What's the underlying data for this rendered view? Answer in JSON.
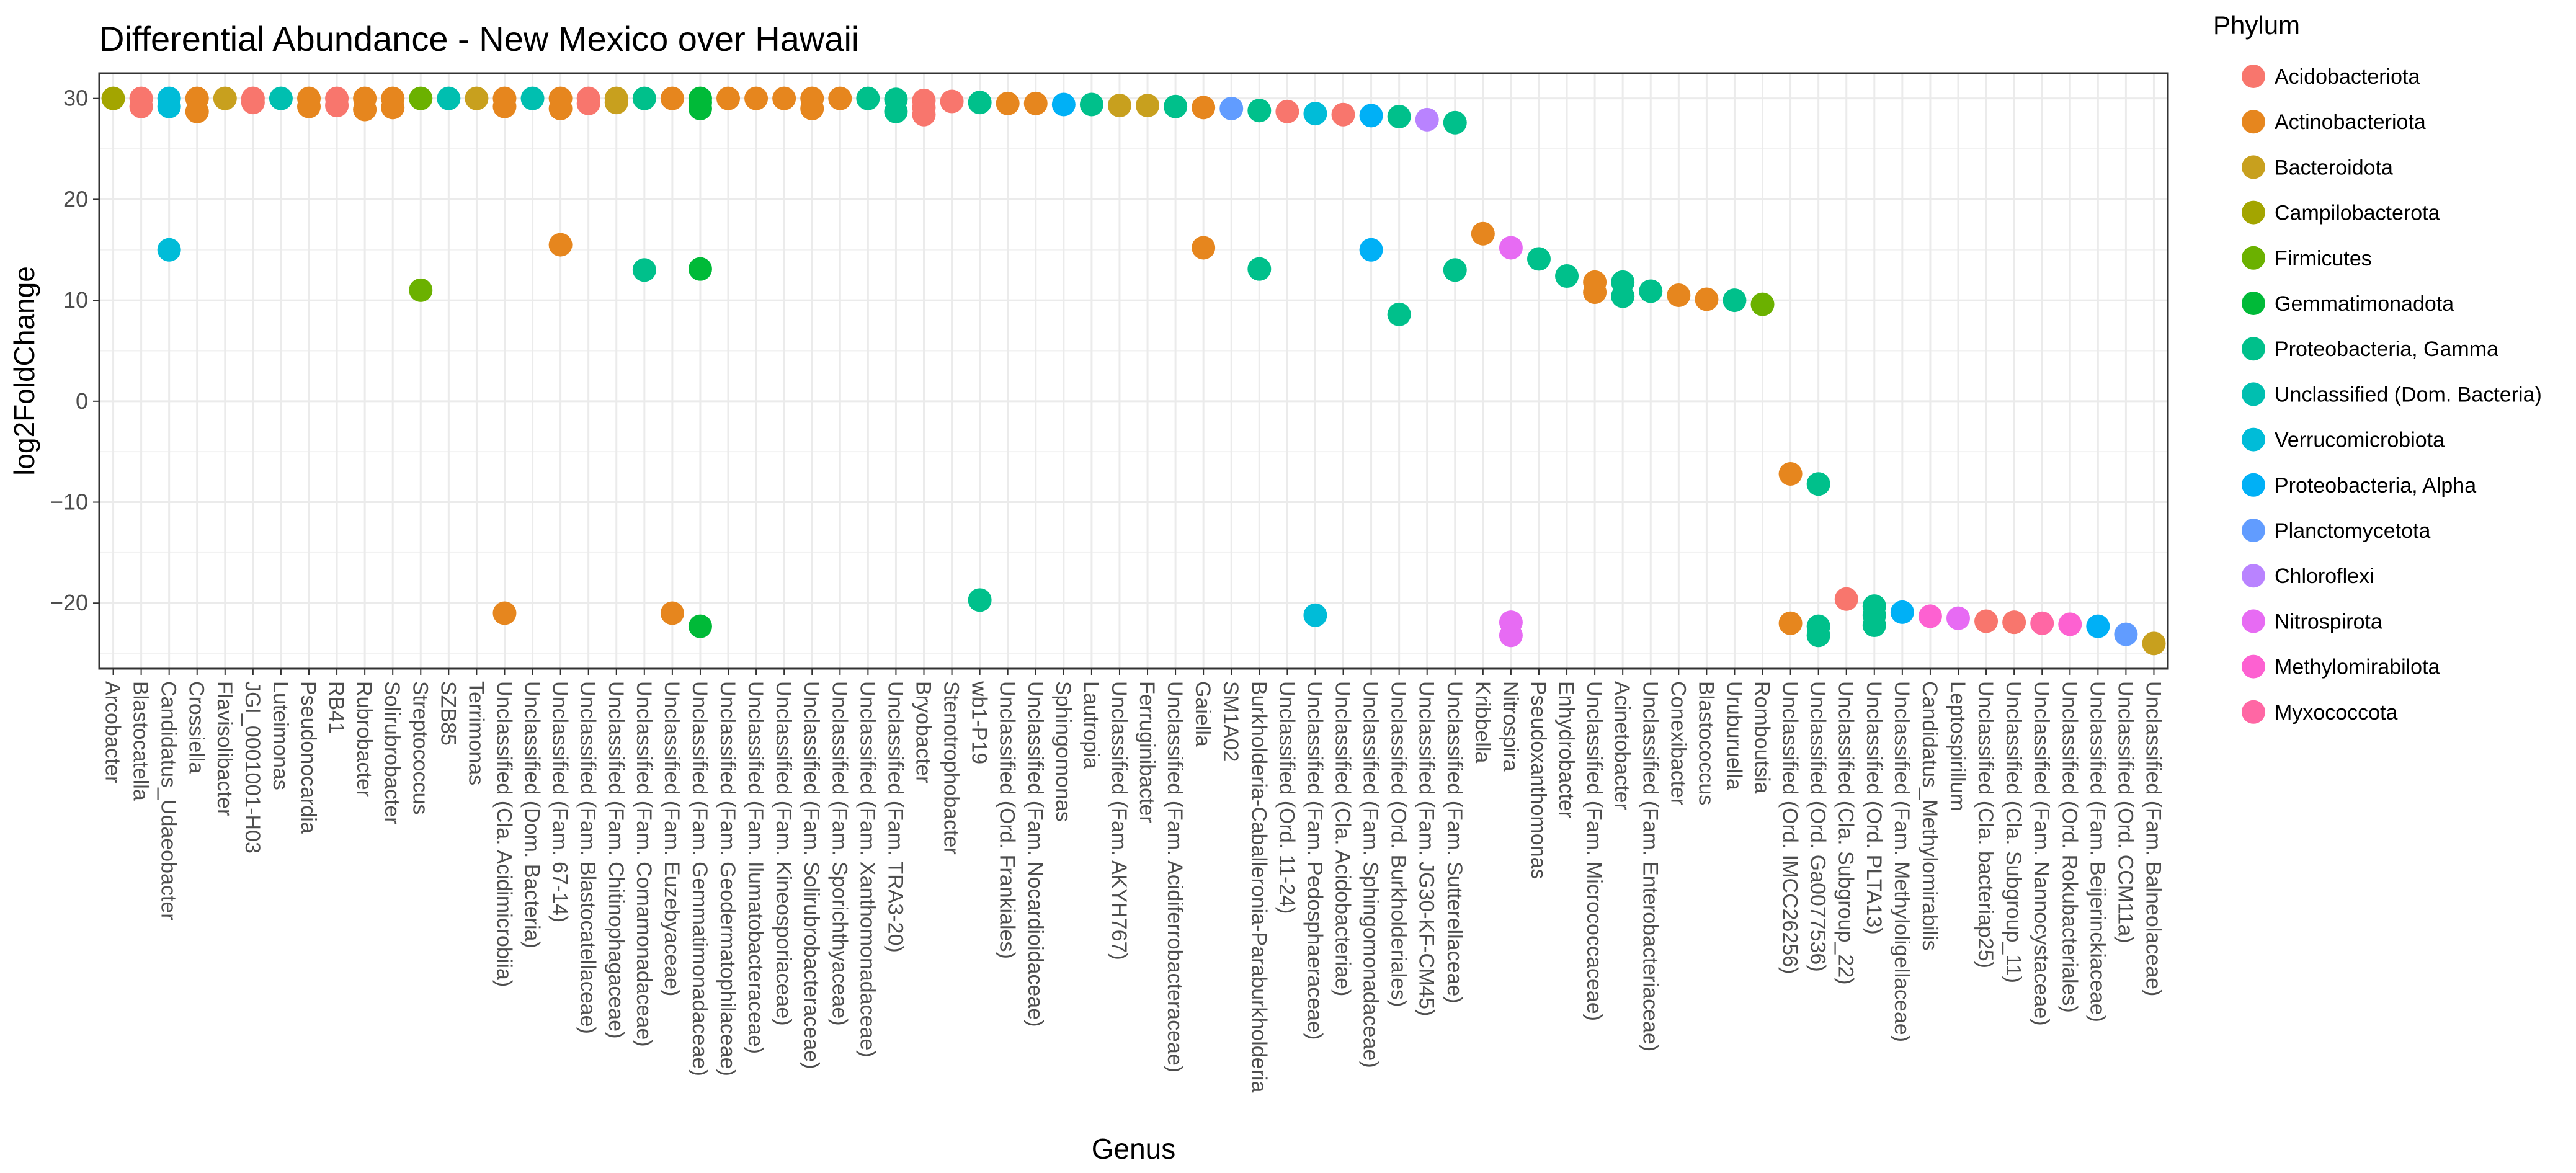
{
  "chart_data": {
    "type": "scatter",
    "title": "Differential Abundance - New Mexico over Hawaii",
    "xlabel": "Genus",
    "ylabel": "log2FoldChange",
    "ylim": [
      -26.5,
      32.5
    ],
    "yticks": [
      30,
      20,
      10,
      0,
      -10,
      -20
    ],
    "grid": true,
    "legend": {
      "title": "Phylum",
      "placement": "right",
      "entries": [
        {
          "name": "Acidobacteriota",
          "color": "#F8766D"
        },
        {
          "name": "Actinobacteriota",
          "color": "#E6861E"
        },
        {
          "name": "Bacteroidota",
          "color": "#C8A01E"
        },
        {
          "name": "Campilobacterota",
          "color": "#A3A500"
        },
        {
          "name": "Firmicutes",
          "color": "#6BB100"
        },
        {
          "name": "Gemmatimonadota",
          "color": "#00BA38"
        },
        {
          "name": "Proteobacteria, Gamma",
          "color": "#00C08B"
        },
        {
          "name": "Unclassified (Dom. Bacteria)",
          "color": "#00BFB0"
        },
        {
          "name": "Verrucomicrobiota",
          "color": "#00BCD8"
        },
        {
          "name": "Proteobacteria, Alpha",
          "color": "#00B0F6"
        },
        {
          "name": "Planctomycetota",
          "color": "#619CFF"
        },
        {
          "name": "Chloroflexi",
          "color": "#B983FF"
        },
        {
          "name": "Nitrospirota",
          "color": "#E76BF3"
        },
        {
          "name": "Methylomirabilota",
          "color": "#FD61D1"
        },
        {
          "name": "Myxococcota",
          "color": "#FF67A4"
        }
      ]
    },
    "categories": [
      "Arcobacter",
      "Blastocatella",
      "Candidatus_Udaeobacter",
      "Crossiella",
      "Flavisolibacter",
      "JGI_0001001-H03",
      "Luteimonas",
      "Pseudonocardia",
      "RB41",
      "Rubrobacter",
      "Solirubrobacter",
      "Streptococcus",
      "SZB85",
      "Terrimonas",
      "Unclassified (Cla. Acidimicrobiia)",
      "Unclassified (Dom. Bacteria)",
      "Unclassified (Fam. 67-14)",
      "Unclassified (Fam. Blastocatellaceae)",
      "Unclassified (Fam. Chitinophagaceae)",
      "Unclassified (Fam. Comamonadaceae)",
      "Unclassified (Fam. Euzebyaceae)",
      "Unclassified (Fam. Gemmatimonadaceae)",
      "Unclassified (Fam. Geodermatophilaceae)",
      "Unclassified (Fam. Ilumatobacteraceae)",
      "Unclassified (Fam. Kineosporiaceae)",
      "Unclassified (Fam. Solirubrobacteraceae)",
      "Unclassified (Fam. Sporichthyaceae)",
      "Unclassified (Fam. Xanthomonadaceae)",
      "Unclassified (Fam. TRA3-20)",
      "Bryobacter",
      "Stenotrophobacter",
      "wb1-P19",
      "Unclassified (Ord. Frankiales)",
      "Unclassified (Fam. Nocardioidaceae)",
      "Sphingomonas",
      "Lautropia",
      "Unclassified (Fam. AKYH767)",
      "Ferruginibacter",
      "Unclassified (Fam. Acidiferrobacteraceae)",
      "Gaiella",
      "SM1A02",
      "Burkholderia-Caballeronia-Paraburkholderia",
      "Unclassified (Ord. 11-24)",
      "Unclassified (Fam. Pedosphaeraceae)",
      "Unclassified (Cla. Acidobacteriae)",
      "Unclassified (Fam. Sphingomonadaceae)",
      "Unclassified (Ord. Burkholderiales)",
      "Unclassified (Fam. JG30-KF-CM45)",
      "Unclassified (Fam. Sutterellaceae)",
      "Kribbella",
      "Nitrospira",
      "Pseudoxanthomonas",
      "Enhydrobacter",
      "Unclassified (Fam. Micrococcaceae)",
      "Acinetobacter",
      "Unclassified (Fam. Enterobacteriaceae)",
      "Conexibacter",
      "Blastococcus",
      "Uruburuella",
      "Romboutsia",
      "Unclassified (Ord. IMCC26256)",
      "Unclassified (Ord. Ga0077536)",
      "Unclassified (Cla. Subgroup_22)",
      "Unclassified (Ord. PLTA13)",
      "Unclassified (Fam. Methyloligellaceae)",
      "Candidatus_Methylomirabilis",
      "Leptospirillum",
      "Unclassified (Cla. bacteriap25)",
      "Unclassified (Cla. Subgroup_11)",
      "Unclassified (Fam. Nannocystaceae)",
      "Unclassified (Ord. Rokubacteriales)",
      "Unclassified (Fam. Beijerinckiaceae)",
      "Unclassified (Ord. CCM11a)",
      "Unclassified (Fam. Balneolaceae)"
    ],
    "points": [
      {
        "x": 0,
        "y": 30,
        "phylum": "Campilobacterota"
      },
      {
        "x": 1,
        "y": 30,
        "phylum": "Acidobacteriota"
      },
      {
        "x": 1,
        "y": 29.2,
        "phylum": "Acidobacteriota"
      },
      {
        "x": 2,
        "y": 30,
        "phylum": "Verrucomicrobiota"
      },
      {
        "x": 2,
        "y": 29.2,
        "phylum": "Verrucomicrobiota"
      },
      {
        "x": 2,
        "y": 15,
        "phylum": "Verrucomicrobiota"
      },
      {
        "x": 3,
        "y": 30,
        "phylum": "Actinobacteriota"
      },
      {
        "x": 3,
        "y": 28.7,
        "phylum": "Actinobacteriota"
      },
      {
        "x": 4,
        "y": 30,
        "phylum": "Bacteroidota"
      },
      {
        "x": 5,
        "y": 30,
        "phylum": "Acidobacteriota"
      },
      {
        "x": 5,
        "y": 29.6,
        "phylum": "Acidobacteriota"
      },
      {
        "x": 6,
        "y": 30,
        "phylum": "Unclassified (Dom. Bacteria)"
      },
      {
        "x": 7,
        "y": 30,
        "phylum": "Actinobacteriota"
      },
      {
        "x": 7,
        "y": 29.2,
        "phylum": "Actinobacteriota"
      },
      {
        "x": 8,
        "y": 30,
        "phylum": "Acidobacteriota"
      },
      {
        "x": 8,
        "y": 29.3,
        "phylum": "Acidobacteriota"
      },
      {
        "x": 9,
        "y": 30,
        "phylum": "Actinobacteriota"
      },
      {
        "x": 9,
        "y": 28.9,
        "phylum": "Actinobacteriota"
      },
      {
        "x": 10,
        "y": 30,
        "phylum": "Actinobacteriota"
      },
      {
        "x": 10,
        "y": 29.1,
        "phylum": "Actinobacteriota"
      },
      {
        "x": 11,
        "y": 30,
        "phylum": "Firmicutes"
      },
      {
        "x": 11,
        "y": 11,
        "phylum": "Firmicutes"
      },
      {
        "x": 12,
        "y": 30,
        "phylum": "Unclassified (Dom. Bacteria)"
      },
      {
        "x": 13,
        "y": 30,
        "phylum": "Bacteroidota"
      },
      {
        "x": 14,
        "y": 30,
        "phylum": "Actinobacteriota"
      },
      {
        "x": 14,
        "y": 29.2,
        "phylum": "Actinobacteriota"
      },
      {
        "x": 14,
        "y": -21,
        "phylum": "Actinobacteriota"
      },
      {
        "x": 15,
        "y": 30,
        "phylum": "Unclassified (Dom. Bacteria)"
      },
      {
        "x": 16,
        "y": 30,
        "phylum": "Actinobacteriota"
      },
      {
        "x": 16,
        "y": 29,
        "phylum": "Actinobacteriota"
      },
      {
        "x": 16,
        "y": 15.5,
        "phylum": "Actinobacteriota"
      },
      {
        "x": 17,
        "y": 30,
        "phylum": "Acidobacteriota"
      },
      {
        "x": 17,
        "y": 29.5,
        "phylum": "Acidobacteriota"
      },
      {
        "x": 18,
        "y": 30,
        "phylum": "Bacteroidota"
      },
      {
        "x": 18,
        "y": 29.6,
        "phylum": "Bacteroidota"
      },
      {
        "x": 19,
        "y": 30,
        "phylum": "Proteobacteria, Gamma"
      },
      {
        "x": 19,
        "y": 13,
        "phylum": "Proteobacteria, Gamma"
      },
      {
        "x": 20,
        "y": 30,
        "phylum": "Actinobacteriota"
      },
      {
        "x": 20,
        "y": -21,
        "phylum": "Actinobacteriota"
      },
      {
        "x": 21,
        "y": 30,
        "phylum": "Gemmatimonadota"
      },
      {
        "x": 21,
        "y": 29.6,
        "phylum": "Gemmatimonadota"
      },
      {
        "x": 21,
        "y": 29,
        "phylum": "Gemmatimonadota"
      },
      {
        "x": 21,
        "y": 13.1,
        "phylum": "Gemmatimonadota"
      },
      {
        "x": 21,
        "y": -22.3,
        "phylum": "Gemmatimonadota"
      },
      {
        "x": 22,
        "y": 30,
        "phylum": "Actinobacteriota"
      },
      {
        "x": 23,
        "y": 30,
        "phylum": "Actinobacteriota"
      },
      {
        "x": 24,
        "y": 30,
        "phylum": "Actinobacteriota"
      },
      {
        "x": 25,
        "y": 30,
        "phylum": "Actinobacteriota"
      },
      {
        "x": 25,
        "y": 29,
        "phylum": "Actinobacteriota"
      },
      {
        "x": 26,
        "y": 30,
        "phylum": "Actinobacteriota"
      },
      {
        "x": 27,
        "y": 30,
        "phylum": "Proteobacteria, Gamma"
      },
      {
        "x": 28,
        "y": 29.9,
        "phylum": "Proteobacteria, Gamma"
      },
      {
        "x": 28,
        "y": 28.7,
        "phylum": "Proteobacteria, Gamma"
      },
      {
        "x": 29,
        "y": 29.8,
        "phylum": "Acidobacteriota"
      },
      {
        "x": 29,
        "y": 29.1,
        "phylum": "Acidobacteriota"
      },
      {
        "x": 29,
        "y": 28.4,
        "phylum": "Acidobacteriota"
      },
      {
        "x": 30,
        "y": 29.7,
        "phylum": "Acidobacteriota"
      },
      {
        "x": 31,
        "y": 29.6,
        "phylum": "Proteobacteria, Gamma"
      },
      {
        "x": 31,
        "y": -19.7,
        "phylum": "Proteobacteria, Gamma"
      },
      {
        "x": 32,
        "y": 29.5,
        "phylum": "Actinobacteriota"
      },
      {
        "x": 33,
        "y": 29.5,
        "phylum": "Actinobacteriota"
      },
      {
        "x": 34,
        "y": 29.4,
        "phylum": "Proteobacteria, Alpha"
      },
      {
        "x": 35,
        "y": 29.4,
        "phylum": "Proteobacteria, Gamma"
      },
      {
        "x": 36,
        "y": 29.3,
        "phylum": "Bacteroidota"
      },
      {
        "x": 37,
        "y": 29.3,
        "phylum": "Bacteroidota"
      },
      {
        "x": 38,
        "y": 29.2,
        "phylum": "Proteobacteria, Gamma"
      },
      {
        "x": 39,
        "y": 29.1,
        "phylum": "Actinobacteriota"
      },
      {
        "x": 39,
        "y": 15.2,
        "phylum": "Actinobacteriota"
      },
      {
        "x": 40,
        "y": 29,
        "phylum": "Planctomycetota"
      },
      {
        "x": 41,
        "y": 28.8,
        "phylum": "Proteobacteria, Gamma"
      },
      {
        "x": 41,
        "y": 13.1,
        "phylum": "Proteobacteria, Gamma"
      },
      {
        "x": 42,
        "y": 28.7,
        "phylum": "Acidobacteriota"
      },
      {
        "x": 43,
        "y": 28.5,
        "phylum": "Verrucomicrobiota"
      },
      {
        "x": 43,
        "y": -21.2,
        "phylum": "Verrucomicrobiota"
      },
      {
        "x": 44,
        "y": 28.4,
        "phylum": "Acidobacteriota"
      },
      {
        "x": 45,
        "y": 28.3,
        "phylum": "Proteobacteria, Alpha"
      },
      {
        "x": 45,
        "y": 15,
        "phylum": "Proteobacteria, Alpha"
      },
      {
        "x": 46,
        "y": 28.2,
        "phylum": "Proteobacteria, Gamma"
      },
      {
        "x": 46,
        "y": 8.6,
        "phylum": "Proteobacteria, Gamma"
      },
      {
        "x": 47,
        "y": 27.9,
        "phylum": "Chloroflexi"
      },
      {
        "x": 48,
        "y": 27.6,
        "phylum": "Proteobacteria, Gamma"
      },
      {
        "x": 48,
        "y": 13,
        "phylum": "Proteobacteria, Gamma"
      },
      {
        "x": 49,
        "y": 16.6,
        "phylum": "Actinobacteriota"
      },
      {
        "x": 50,
        "y": 15.2,
        "phylum": "Nitrospirota"
      },
      {
        "x": 50,
        "y": -21.9,
        "phylum": "Nitrospirota"
      },
      {
        "x": 50,
        "y": -23.2,
        "phylum": "Nitrospirota"
      },
      {
        "x": 51,
        "y": 14.1,
        "phylum": "Proteobacteria, Gamma"
      },
      {
        "x": 52,
        "y": 12.4,
        "phylum": "Proteobacteria, Gamma"
      },
      {
        "x": 53,
        "y": 11.8,
        "phylum": "Actinobacteriota"
      },
      {
        "x": 53,
        "y": 10.8,
        "phylum": "Actinobacteriota"
      },
      {
        "x": 54,
        "y": 11.8,
        "phylum": "Proteobacteria, Gamma"
      },
      {
        "x": 54,
        "y": 10.4,
        "phylum": "Proteobacteria, Gamma"
      },
      {
        "x": 55,
        "y": 10.9,
        "phylum": "Proteobacteria, Gamma"
      },
      {
        "x": 56,
        "y": 10.5,
        "phylum": "Actinobacteriota"
      },
      {
        "x": 57,
        "y": 10.1,
        "phylum": "Actinobacteriota"
      },
      {
        "x": 58,
        "y": 10,
        "phylum": "Proteobacteria, Gamma"
      },
      {
        "x": 59,
        "y": 9.6,
        "phylum": "Firmicutes"
      },
      {
        "x": 60,
        "y": -7.2,
        "phylum": "Actinobacteriota"
      },
      {
        "x": 60,
        "y": -22,
        "phylum": "Actinobacteriota"
      },
      {
        "x": 61,
        "y": -8.2,
        "phylum": "Proteobacteria, Gamma"
      },
      {
        "x": 61,
        "y": -22.3,
        "phylum": "Proteobacteria, Gamma"
      },
      {
        "x": 61,
        "y": -23.2,
        "phylum": "Proteobacteria, Gamma"
      },
      {
        "x": 62,
        "y": -19.6,
        "phylum": "Acidobacteriota"
      },
      {
        "x": 63,
        "y": -20.3,
        "phylum": "Proteobacteria, Gamma"
      },
      {
        "x": 63,
        "y": -21.2,
        "phylum": "Proteobacteria, Gamma"
      },
      {
        "x": 63,
        "y": -22.2,
        "phylum": "Proteobacteria, Gamma"
      },
      {
        "x": 64,
        "y": -20.9,
        "phylum": "Proteobacteria, Alpha"
      },
      {
        "x": 65,
        "y": -21.3,
        "phylum": "Methylomirabilota"
      },
      {
        "x": 66,
        "y": -21.5,
        "phylum": "Nitrospirota"
      },
      {
        "x": 67,
        "y": -21.8,
        "phylum": "Acidobacteriota"
      },
      {
        "x": 68,
        "y": -21.9,
        "phylum": "Acidobacteriota"
      },
      {
        "x": 69,
        "y": -22,
        "phylum": "Myxococcota"
      },
      {
        "x": 70,
        "y": -22.1,
        "phylum": "Methylomirabilota"
      },
      {
        "x": 71,
        "y": -22.3,
        "phylum": "Proteobacteria, Alpha"
      },
      {
        "x": 72,
        "y": -23.1,
        "phylum": "Planctomycetota"
      },
      {
        "x": 73,
        "y": -24,
        "phylum": "Bacteroidota"
      }
    ]
  }
}
